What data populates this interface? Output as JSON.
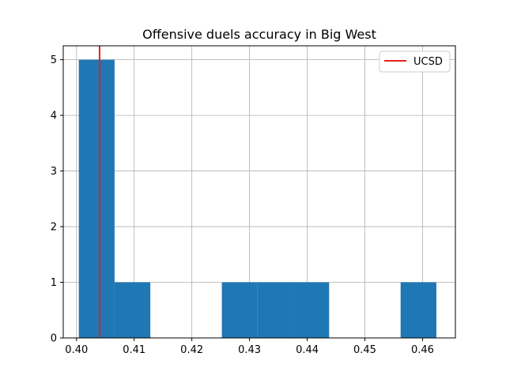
{
  "chart_data": {
    "type": "bar",
    "title": "Offensive duels accuracy in Big West",
    "xlabel": "",
    "ylabel": "",
    "xlim": [
      0.3977,
      0.4657
    ],
    "ylim": [
      0,
      5.25
    ],
    "grid": true,
    "legend_placement": "top-right",
    "xticks": [
      0.4,
      0.41,
      0.42,
      0.43,
      0.44,
      0.45,
      0.46
    ],
    "xtick_labels": [
      "0.40",
      "0.41",
      "0.42",
      "0.43",
      "0.44",
      "0.45",
      "0.46"
    ],
    "yticks": [
      0,
      1,
      2,
      3,
      4,
      5
    ],
    "ytick_labels": [
      "0",
      "1",
      "2",
      "3",
      "4",
      "5"
    ],
    "bins": [
      {
        "x0": 0.4004,
        "x1": 0.4066,
        "count": 5
      },
      {
        "x0": 0.4066,
        "x1": 0.4128,
        "count": 1
      },
      {
        "x0": 0.4128,
        "x1": 0.419,
        "count": 0
      },
      {
        "x0": 0.419,
        "x1": 0.4252,
        "count": 0
      },
      {
        "x0": 0.4252,
        "x1": 0.4314,
        "count": 1
      },
      {
        "x0": 0.4314,
        "x1": 0.4376,
        "count": 1
      },
      {
        "x0": 0.4376,
        "x1": 0.4438,
        "count": 1
      },
      {
        "x0": 0.4438,
        "x1": 0.45,
        "count": 0
      },
      {
        "x0": 0.45,
        "x1": 0.4562,
        "count": 0
      },
      {
        "x0": 0.4562,
        "x1": 0.4624,
        "count": 1
      }
    ],
    "reference_line": {
      "label": "UCSD",
      "x": 0.404,
      "color": "#e8201a"
    },
    "bar_color": "#1f77b4",
    "grid_color": "#b0b0b0"
  }
}
